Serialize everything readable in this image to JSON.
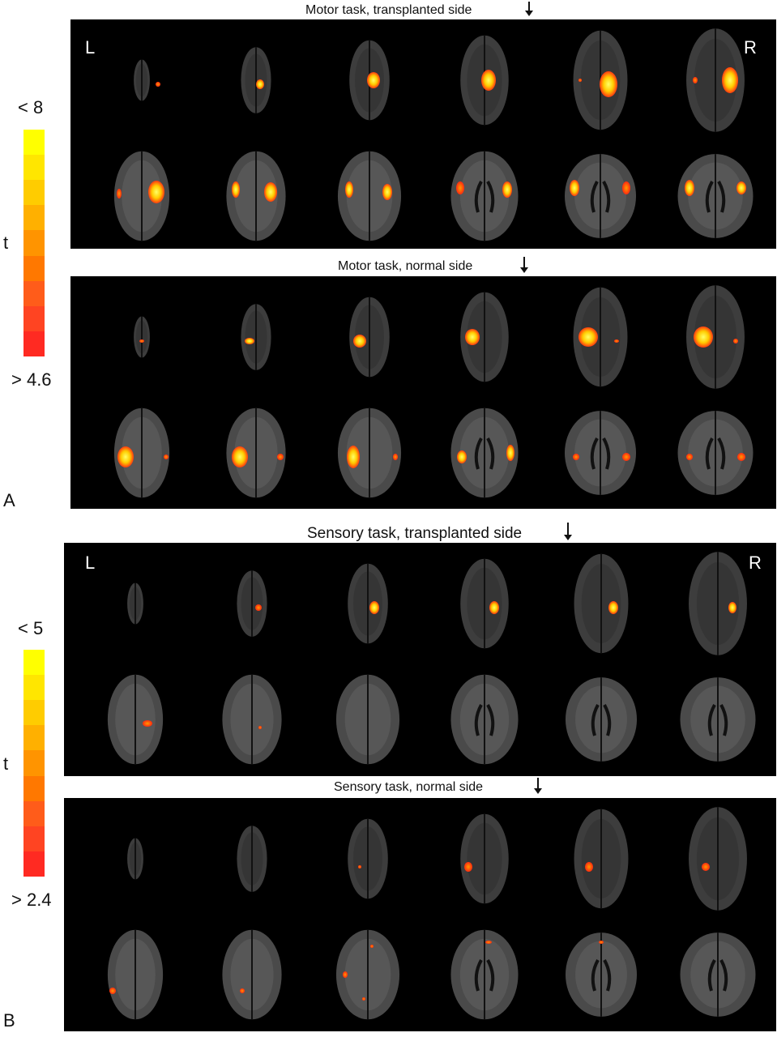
{
  "sectionA": {
    "letter": "A",
    "colorbar": {
      "max_label": "< 8",
      "axis_label": "t",
      "min_label": "> 4.6",
      "colors": [
        "#ffff00",
        "#ffe600",
        "#ffcc00",
        "#ffb000",
        "#ff9400",
        "#ff7800",
        "#ff5c1a",
        "#ff4422",
        "#ff2a22"
      ]
    },
    "panels": [
      {
        "title": "Motor task, transplanted side",
        "left_label": "L",
        "right_label": "R"
      },
      {
        "title": "Motor task, normal side"
      }
    ]
  },
  "sectionB": {
    "letter": "B",
    "colorbar": {
      "max_label": "< 5",
      "axis_label": "t",
      "min_label": "> 2.4",
      "colors": [
        "#ffff00",
        "#ffe600",
        "#ffcc00",
        "#ffb000",
        "#ff9400",
        "#ff7800",
        "#ff5c1a",
        "#ff4422",
        "#ff2a22"
      ]
    },
    "panels": [
      {
        "title": "Sensory task, transplanted side",
        "left_label": "L",
        "right_label": "R"
      },
      {
        "title": "Sensory task, normal side"
      }
    ]
  }
}
